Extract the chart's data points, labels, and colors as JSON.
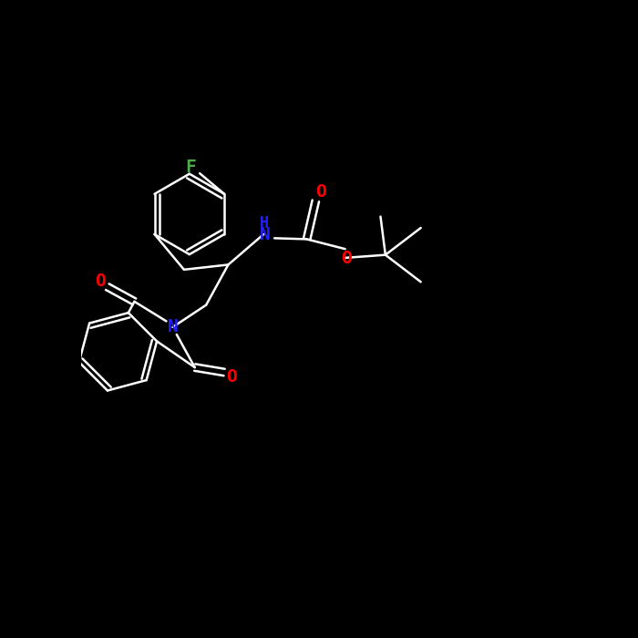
{
  "background_color": "#000000",
  "line_color": "#ffffff",
  "atom_colors": {
    "F": "#4aaf4a",
    "O": "#ff0000",
    "N": "#2020ff",
    "NH": "#2020ff"
  },
  "figsize": [
    7.0,
    7.0
  ],
  "dpi": 100,
  "bond_lw": 1.8,
  "font_size": 14
}
